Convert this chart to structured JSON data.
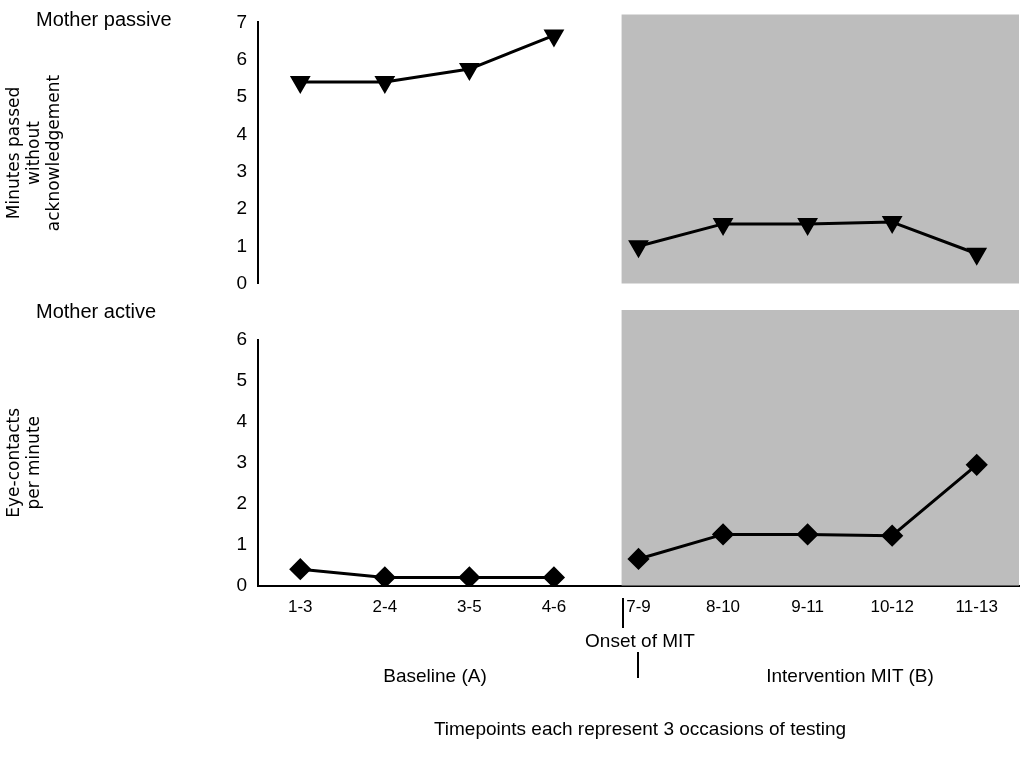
{
  "chart_data": [
    {
      "type": "line",
      "title": "Mother passive",
      "ylabel": "Minutes passed without acknowledgement",
      "categories": [
        "1-3",
        "2-4",
        "3-5",
        "4-6",
        "7-9",
        "8-10",
        "9-11",
        "10-12",
        "11-13"
      ],
      "ylim": [
        0,
        7
      ],
      "yticks": [
        0,
        1,
        2,
        3,
        4,
        5,
        6,
        7
      ],
      "tick_labels": "y",
      "marker": "triangle",
      "bands": [
        {
          "axis": "x",
          "from": "7-9",
          "to": "11-13",
          "color": "#bdbdbd"
        }
      ],
      "series": [
        {
          "color": "#000000",
          "values": [
            5.4,
            5.4,
            5.75,
            6.65,
            null,
            null,
            null,
            null,
            null
          ]
        },
        {
          "color": "#000000",
          "values": [
            null,
            null,
            null,
            null,
            1.0,
            1.6,
            1.6,
            1.65,
            0.8
          ]
        }
      ]
    },
    {
      "type": "line",
      "title": "Mother active",
      "ylabel": "Eye-contacts per minute",
      "xlabel": "Timepoints each represent 3 occasions of testing",
      "categories": [
        "1-3",
        "2-4",
        "3-5",
        "4-6",
        "7-9",
        "8-10",
        "9-11",
        "10-12",
        "11-13"
      ],
      "ylim": [
        0,
        6
      ],
      "yticks": [
        0,
        1,
        2,
        3,
        4,
        5,
        6
      ],
      "marker": "diamond",
      "bands": [
        {
          "axis": "x",
          "from": "7-9",
          "to": "11-13",
          "color": "#bdbdbd"
        }
      ],
      "annotations": [
        "Onset of MIT",
        "Baseline (A)",
        "Intervention MIT (B)"
      ],
      "series": [
        {
          "color": "#000000",
          "values": [
            0.4,
            0.2,
            0.2,
            0.2,
            null,
            null,
            null,
            null,
            null
          ]
        },
        {
          "color": "#000000",
          "values": [
            null,
            null,
            null,
            null,
            0.65,
            1.25,
            1.25,
            1.22,
            2.95
          ]
        }
      ]
    }
  ]
}
